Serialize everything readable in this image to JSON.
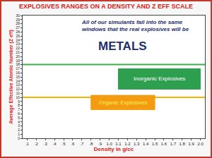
{
  "chart_data": {
    "type": "region",
    "title": "EXPLOSIVES RANGES ON A DENSITY AND Z EFF SCALE",
    "xlabel": "Density in g/cc",
    "ylabel": "Average Effective Atomic Number (Z eff)",
    "annotations": [
      "All of our simulants fall into the same",
      "windows that the real explosives will be",
      "METALS"
    ],
    "xlim": [
      0.05,
      2.05
    ],
    "ylim": [
      0,
      30
    ],
    "xticks": [
      {
        "value": 0.1,
        "label": ".1"
      },
      {
        "value": 0.2,
        "label": ".2"
      },
      {
        "value": 0.3,
        "label": ".3"
      },
      {
        "value": 0.4,
        "label": ".4"
      },
      {
        "value": 0.5,
        "label": ".5"
      },
      {
        "value": 0.6,
        "label": ".6"
      },
      {
        "value": 0.7,
        "label": ".7"
      },
      {
        "value": 0.8,
        "label": ".8"
      },
      {
        "value": 0.9,
        "label": ".9"
      },
      {
        "value": 1,
        "label": "1.0"
      },
      1.1,
      1.2,
      1.3,
      1.4,
      1.5,
      1.6,
      1.7,
      1.8,
      1.9,
      {
        "value": 2,
        "label": "2.0"
      }
    ],
    "yticks": [
      0,
      1,
      2,
      3,
      4,
      5,
      6,
      7,
      8,
      9,
      10,
      11,
      12,
      13,
      14,
      15,
      16,
      17,
      18,
      19,
      20,
      21,
      22,
      23,
      24,
      25,
      26,
      27,
      28,
      29,
      30
    ],
    "grid": false,
    "lines": [
      {
        "value": 18,
        "color": "#3cb043"
      },
      {
        "value": 10,
        "color": "#f5b400"
      }
    ],
    "series": [
      {
        "name": "Inorganic Explosives",
        "color": "#2e9e4f",
        "x": [
          1.1,
          2.0
        ],
        "y": [
          12,
          17
        ]
      },
      {
        "name": "Organic Explosives",
        "color": "#f39c12",
        "x": [
          0.8,
          1.5
        ],
        "y": [
          7,
          10.5
        ]
      }
    ]
  }
}
